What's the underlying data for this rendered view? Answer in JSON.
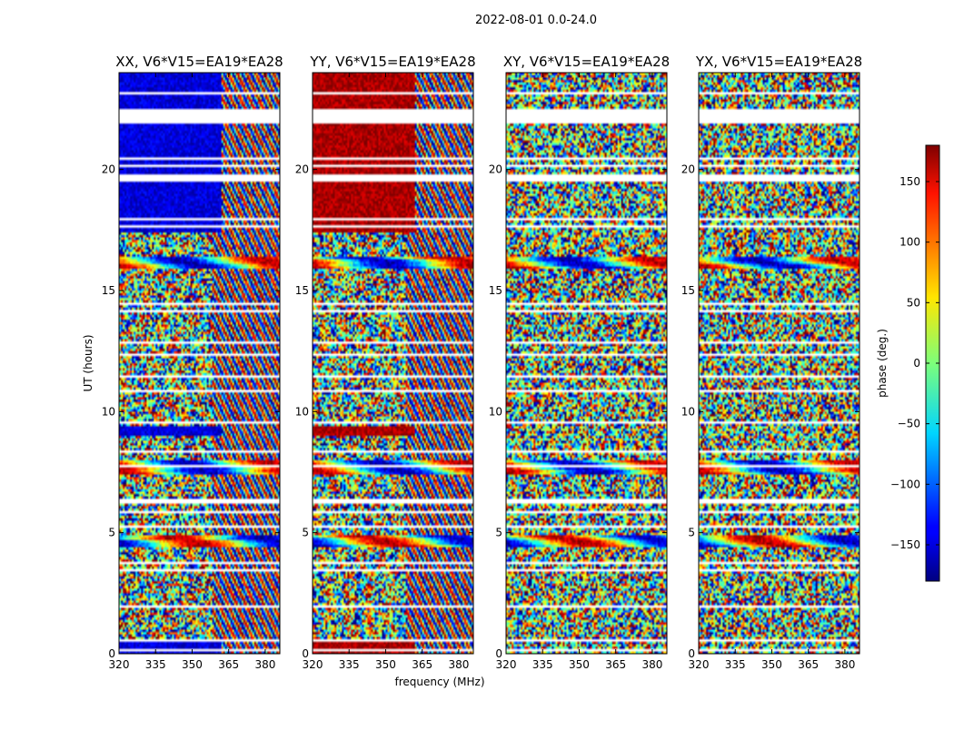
{
  "suptitle": "2022-08-01 0.0-24.0",
  "chart_data": {
    "type": "heatmap",
    "panels": [
      {
        "title": "XX, V6*V15=EA19*EA28",
        "pol": "XX"
      },
      {
        "title": "YY, V6*V15=EA19*EA28",
        "pol": "YY"
      },
      {
        "title": "XY, V6*V15=EA19*EA28",
        "pol": "XY"
      },
      {
        "title": "YX, V6*V15=EA19*EA28",
        "pol": "YX"
      }
    ],
    "xlabel": "frequency (MHz)",
    "ylabel": "UT (hours)",
    "xlim": [
      320,
      386
    ],
    "ylim": [
      0,
      24
    ],
    "xticks": [
      320,
      335,
      350,
      365,
      380
    ],
    "yticks": [
      0,
      5,
      10,
      15,
      20
    ],
    "colorbar": {
      "label": "phase (deg.)",
      "range": [
        -180,
        180
      ],
      "ticks": [
        150,
        100,
        50,
        0,
        -50,
        -100,
        -150
      ],
      "ticklabels": [
        "150",
        "100",
        "50",
        "0",
        "−50",
        "−100",
        "−150"
      ],
      "colormap": "jet"
    },
    "flagged_rows_hours": [
      0.15,
      0.55,
      1.95,
      3.45,
      3.75,
      5.25,
      5.85,
      6.3,
      7.1,
      7.7,
      8.3,
      9.6,
      10.85,
      11.4,
      12.3,
      12.8,
      13.3,
      14.2,
      14.45,
      17.6,
      17.95,
      18.3,
      19.55,
      19.75,
      20.15,
      20.45,
      21.0,
      21.95,
      22.3,
      23.1
    ],
    "flagged_bands_hours": [
      [
        21.9,
        22.5
      ],
      [
        19.6,
        19.8
      ]
    ],
    "coherent_band_max_freq_mhz": 362,
    "coherent_band_start_hours": 17.4
  }
}
